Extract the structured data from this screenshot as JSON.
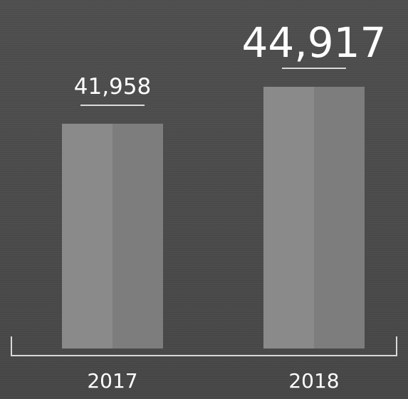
{
  "chart_data": {
    "type": "bar",
    "categories": [
      "2017",
      "2018"
    ],
    "values": [
      41958,
      44917
    ],
    "value_labels": [
      "41,958",
      "44,917"
    ],
    "title": "",
    "xlabel": "",
    "ylabel": "",
    "grid": false,
    "legend": "none",
    "colors": {
      "background": "#4a4a4a",
      "bar_left": "#8a8a8a",
      "bar_right": "#7d7d7d",
      "text": "#ffffff",
      "axis": "#d9d9d9"
    }
  }
}
